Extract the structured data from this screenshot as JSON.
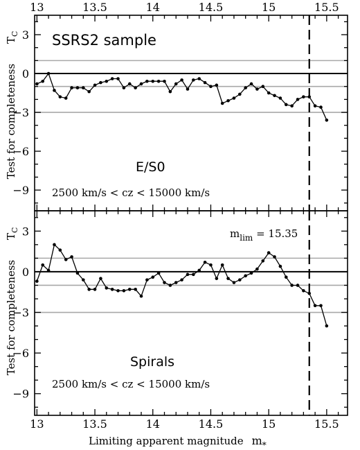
{
  "chart_data": [
    {
      "type": "line",
      "panel": "top",
      "title": "SSRS2 sample",
      "class_label": "E/S0",
      "range_label": "2500 km/s < cz < 15000 km/s",
      "ylabel": "Test for completeness",
      "ysymbol": "T",
      "ysymbol_sub": "C",
      "xlim": [
        12.98,
        15.68
      ],
      "ylim": [
        -10.6,
        4.5
      ],
      "x_ticks": [
        "13",
        "13.5",
        "14",
        "14.5",
        "15",
        "15.5"
      ],
      "y_ticks": [
        "3",
        "0",
        "−3",
        "−6",
        "−9"
      ],
      "reference_lines_y": [
        1,
        -1,
        -3
      ],
      "zero_line_y": 0,
      "vline_x": 15.35,
      "series": [
        {
          "x": [
            13.0,
            13.05,
            13.1,
            13.15,
            13.2,
            13.25,
            13.3,
            13.35,
            13.4,
            13.45,
            13.5,
            13.55,
            13.6,
            13.65,
            13.7,
            13.75,
            13.8,
            13.85,
            13.9,
            13.95,
            14.0,
            14.05,
            14.1,
            14.15,
            14.2,
            14.25,
            14.3,
            14.35,
            14.4,
            14.45,
            14.5,
            14.55,
            14.6,
            14.65,
            14.7,
            14.75,
            14.8,
            14.85,
            14.9,
            14.95,
            15.0,
            15.05,
            15.1,
            15.15,
            15.2,
            15.25,
            15.3,
            15.35,
            15.4,
            15.45,
            15.5
          ],
          "y": [
            -0.8,
            -0.6,
            0.0,
            -1.3,
            -1.8,
            -1.9,
            -1.1,
            -1.1,
            -1.1,
            -1.4,
            -0.9,
            -0.7,
            -0.6,
            -0.4,
            -0.4,
            -1.1,
            -0.8,
            -1.1,
            -0.8,
            -0.6,
            -0.6,
            -0.6,
            -0.6,
            -1.4,
            -0.8,
            -0.5,
            -1.2,
            -0.5,
            -0.4,
            -0.7,
            -1.0,
            -0.9,
            -2.3,
            -2.1,
            -1.9,
            -1.6,
            -1.1,
            -0.8,
            -1.2,
            -1.0,
            -1.5,
            -1.7,
            -1.9,
            -2.4,
            -2.5,
            -2.0,
            -1.8,
            -1.8,
            -2.5,
            -2.6,
            -3.6
          ]
        }
      ]
    },
    {
      "type": "line",
      "panel": "bottom",
      "title": "",
      "class_label": "Spirals",
      "range_label": "2500 km/s < cz < 15000 km/s",
      "annotation_main": "m",
      "annotation_sub": "lim",
      "annotation_value": " = 15.35",
      "xlabel": "Limiting apparent magnitude",
      "xsymbol": "m",
      "xsymbol_sub": "*",
      "ylabel": "Test for completeness",
      "ysymbol": "T",
      "ysymbol_sub": "C",
      "xlim": [
        12.98,
        15.68
      ],
      "ylim": [
        -10.6,
        4.5
      ],
      "x_ticks": [
        "13",
        "13.5",
        "14",
        "14.5",
        "15",
        "15.5"
      ],
      "y_ticks": [
        "3",
        "0",
        "−3",
        "−6",
        "−9"
      ],
      "reference_lines_y": [
        1,
        -1,
        -3
      ],
      "zero_line_y": 0,
      "vline_x": 15.35,
      "series": [
        {
          "x": [
            13.0,
            13.05,
            13.1,
            13.15,
            13.2,
            13.25,
            13.3,
            13.35,
            13.4,
            13.45,
            13.5,
            13.55,
            13.6,
            13.65,
            13.7,
            13.75,
            13.8,
            13.85,
            13.9,
            13.95,
            14.0,
            14.05,
            14.1,
            14.15,
            14.2,
            14.25,
            14.3,
            14.35,
            14.4,
            14.45,
            14.5,
            14.55,
            14.6,
            14.65,
            14.7,
            14.75,
            14.8,
            14.85,
            14.9,
            14.95,
            15.0,
            15.05,
            15.1,
            15.15,
            15.2,
            15.25,
            15.3,
            15.35,
            15.4,
            15.45,
            15.5
          ],
          "y": [
            -0.7,
            0.5,
            0.1,
            2.0,
            1.6,
            0.9,
            1.1,
            -0.1,
            -0.6,
            -1.3,
            -1.3,
            -0.5,
            -1.2,
            -1.3,
            -1.4,
            -1.4,
            -1.3,
            -1.3,
            -1.8,
            -0.6,
            -0.4,
            -0.1,
            -0.8,
            -1.0,
            -0.8,
            -0.6,
            -0.2,
            -0.2,
            0.1,
            0.7,
            0.5,
            -0.5,
            0.5,
            -0.5,
            -0.8,
            -0.6,
            -0.3,
            -0.1,
            0.2,
            0.8,
            1.4,
            1.1,
            0.4,
            -0.4,
            -1.0,
            -1.0,
            -1.4,
            -1.6,
            -2.5,
            -2.5,
            -4.0
          ]
        }
      ]
    }
  ]
}
